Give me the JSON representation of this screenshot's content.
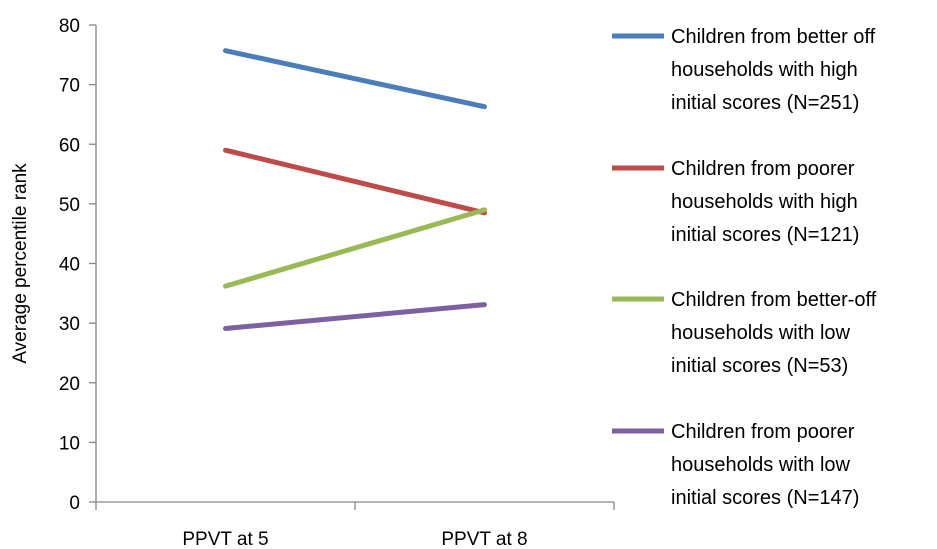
{
  "chart_data": {
    "type": "line",
    "title": "",
    "xlabel": "",
    "ylabel": "Average percentile rank",
    "categories": [
      "PPVT at 5",
      "PPVT at 8"
    ],
    "ylim": [
      0,
      80
    ],
    "yticks": [
      0,
      10,
      20,
      30,
      40,
      50,
      60,
      70,
      80
    ],
    "grid": false,
    "legend_position": "right",
    "series": [
      {
        "name": "Children from better off households with high initial scores (N=251)",
        "legend_lines": [
          "Children from better off",
          "households with high",
          "initial scores (N=251)"
        ],
        "color": "#4a7ebb",
        "values": [
          75.7,
          66.3
        ]
      },
      {
        "name": "Children from poorer households with high initial scores (N=121)",
        "legend_lines": [
          "Children from poorer",
          "households with high",
          "initial scores (N=121)"
        ],
        "color": "#be4b48",
        "values": [
          59,
          48.5
        ]
      },
      {
        "name": "Children from better-off households with low initial scores (N=53)",
        "legend_lines": [
          "Children from better-off",
          "households with low",
          "initial scores (N=53)"
        ],
        "color": "#98b954",
        "values": [
          36.2,
          49
        ]
      },
      {
        "name": "Children from poorer households with low initial scores (N=147)",
        "legend_lines": [
          "Children from poorer",
          "households with low",
          "initial scores (N=147)"
        ],
        "color": "#7d60a0",
        "values": [
          29.1,
          33.1
        ]
      }
    ]
  }
}
